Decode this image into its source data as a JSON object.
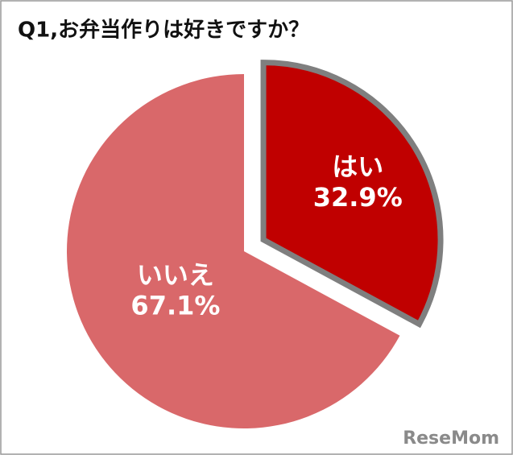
{
  "chart_data": {
    "type": "pie",
    "title": "Q1,お弁当作りは好きですか？",
    "categories": [
      "はい",
      "いいえ"
    ],
    "values": [
      32.9,
      67.1
    ],
    "value_labels": [
      "32.9%",
      "67.1%"
    ],
    "colors": [
      "#c00000",
      "#d9686a"
    ],
    "watermark": "ReseMom"
  }
}
